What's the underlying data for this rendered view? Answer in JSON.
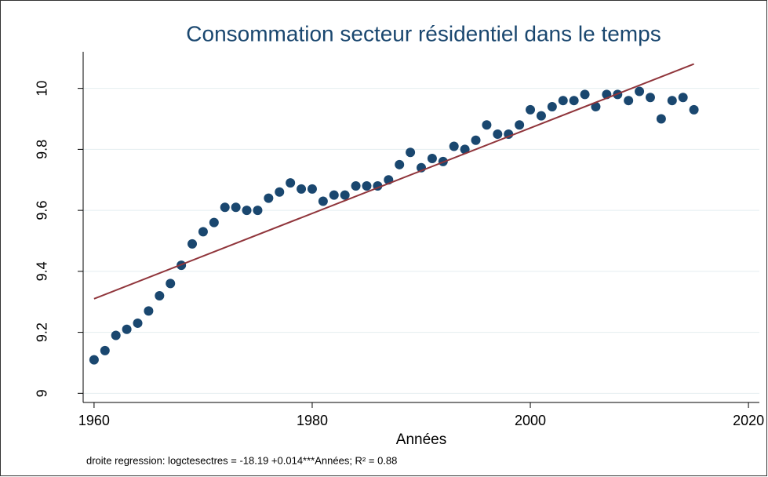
{
  "chart_data": {
    "type": "scatter",
    "title": "Consommation secteur résidentiel dans le temps",
    "x_label": "Années",
    "note": "droite regression: logctesectres = -18.19 +0.014***Années;  R² = 0.88",
    "xlim": [
      1959,
      2021
    ],
    "xticks": [
      1960,
      1980,
      2000,
      2020
    ],
    "ylim": [
      8.97,
      10.12
    ],
    "yticks": [
      9,
      9.2,
      9.4,
      9.6,
      9.8,
      10
    ],
    "grid": true,
    "series": [
      {
        "type": "scatter",
        "color": "#1a476f",
        "x": [
          1960,
          1961,
          1962,
          1963,
          1964,
          1965,
          1966,
          1967,
          1968,
          1969,
          1970,
          1971,
          1972,
          1973,
          1974,
          1975,
          1976,
          1977,
          1978,
          1979,
          1980,
          1981,
          1982,
          1983,
          1984,
          1985,
          1986,
          1987,
          1988,
          1989,
          1990,
          1991,
          1992,
          1993,
          1994,
          1995,
          1996,
          1997,
          1998,
          1999,
          2000,
          2001,
          2002,
          2003,
          2004,
          2005,
          2006,
          2007,
          2008,
          2009,
          2010,
          2011,
          2012,
          2013,
          2014,
          2015
        ],
        "values": [
          9.11,
          9.14,
          9.19,
          9.21,
          9.23,
          9.27,
          9.32,
          9.36,
          9.42,
          9.49,
          9.53,
          9.56,
          9.61,
          9.61,
          9.6,
          9.6,
          9.64,
          9.66,
          9.69,
          9.67,
          9.67,
          9.63,
          9.65,
          9.65,
          9.68,
          9.68,
          9.68,
          9.7,
          9.75,
          9.79,
          9.74,
          9.77,
          9.76,
          9.81,
          9.8,
          9.83,
          9.88,
          9.85,
          9.85,
          9.88,
          9.93,
          9.91,
          9.94,
          9.96,
          9.96,
          9.98,
          9.94,
          9.98,
          9.98,
          9.96,
          9.99,
          9.97,
          9.9,
          9.96,
          9.97,
          9.93
        ]
      },
      {
        "type": "line",
        "color": "#90353b",
        "x": [
          1960,
          2015
        ],
        "values": [
          9.31,
          10.08
        ]
      }
    ]
  }
}
